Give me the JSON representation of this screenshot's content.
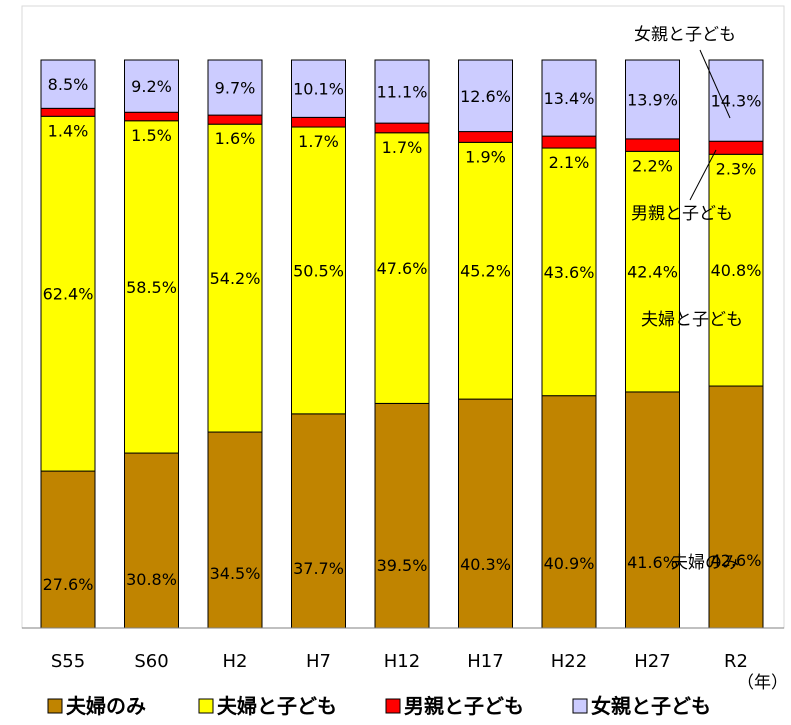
{
  "chart_data": {
    "type": "bar",
    "stacked": true,
    "normalized": true,
    "categories": [
      "S55",
      "S60",
      "H2",
      "H7",
      "H12",
      "H17",
      "H22",
      "H27",
      "R2"
    ],
    "xlabel": "（年）",
    "ylim": [
      0,
      100
    ],
    "series": [
      {
        "name": "夫婦のみ",
        "color": "#C08400",
        "values": [
          27.6,
          30.8,
          34.5,
          37.7,
          39.5,
          40.3,
          40.9,
          41.6,
          42.6
        ],
        "labels": [
          "27.6%",
          "30.8%",
          "34.5%",
          "37.7%",
          "39.5%",
          "40.3%",
          "40.9%",
          "41.6%",
          "42.6%"
        ]
      },
      {
        "name": "夫婦と子ども",
        "color": "#FFFF00",
        "values": [
          62.4,
          58.5,
          54.2,
          50.5,
          47.6,
          45.2,
          43.6,
          42.4,
          40.8
        ],
        "labels": [
          "62.4%",
          "58.5%",
          "54.2%",
          "50.5%",
          "47.6%",
          "45.2%",
          "43.6%",
          "42.4%",
          "40.8%"
        ]
      },
      {
        "name": "男親と子ども",
        "color": "#FF0000",
        "values": [
          1.4,
          1.5,
          1.6,
          1.7,
          1.7,
          1.9,
          2.1,
          2.2,
          2.3
        ],
        "labels": [
          "1.4%",
          "1.5%",
          "1.6%",
          "1.7%",
          "1.7%",
          "1.9%",
          "2.1%",
          "2.2%",
          "2.3%"
        ]
      },
      {
        "name": "女親と子ども",
        "color": "#CCCCFF",
        "values": [
          8.5,
          9.2,
          9.7,
          10.1,
          11.1,
          12.6,
          13.4,
          13.9,
          14.3
        ],
        "labels": [
          "8.5%",
          "9.2%",
          "9.7%",
          "10.1%",
          "11.1%",
          "12.6%",
          "13.4%",
          "13.9%",
          "14.3%"
        ]
      }
    ],
    "annotations": {
      "female_parent": "女親と子ども",
      "male_parent": "男親と子ども",
      "couple_children": "夫婦と子ども",
      "couple_only": "夫婦のみ"
    },
    "legend": {
      "placement": "bottom",
      "items": [
        "夫婦のみ",
        "夫婦と子ども",
        "男親と子ども",
        "女親と子ども"
      ]
    },
    "grid": false
  }
}
